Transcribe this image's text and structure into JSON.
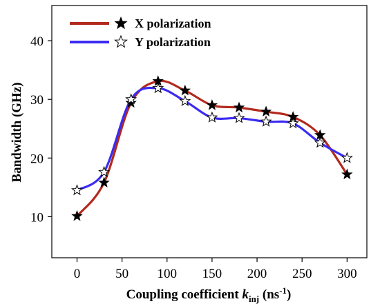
{
  "chart_data": {
    "type": "line",
    "xlabel": {
      "main": "Coupling coefficient ",
      "k": "k",
      "sub": "inj",
      "unit_open": " (ns",
      "sup": "-1",
      "unit_close": ")"
    },
    "ylabel": "Bandwidth (GHz)",
    "xlim": [
      -28,
      322
    ],
    "ylim": [
      3,
      46
    ],
    "xticks": [
      0,
      50,
      100,
      150,
      200,
      250,
      300
    ],
    "yticks": [
      10,
      20,
      30,
      40
    ],
    "grid": false,
    "legend_position": "top-left",
    "series": [
      {
        "name": "X polarization",
        "line_color": "#b22a1e",
        "marker": "filled-star",
        "x": [
          0,
          30,
          60,
          90,
          120,
          150,
          180,
          210,
          240,
          270,
          300
        ],
        "y": [
          10.1,
          15.8,
          29.4,
          33.1,
          31.5,
          29.0,
          28.6,
          27.9,
          27.0,
          23.9,
          17.2
        ]
      },
      {
        "name": "Y polarization",
        "line_color": "#3b2bf0",
        "marker": "open-star",
        "x": [
          0,
          30,
          60,
          90,
          120,
          150,
          180,
          210,
          240,
          270,
          300
        ],
        "y": [
          14.5,
          17.6,
          30.0,
          31.9,
          29.7,
          26.9,
          26.8,
          26.2,
          25.9,
          22.6,
          20.0
        ]
      }
    ]
  }
}
